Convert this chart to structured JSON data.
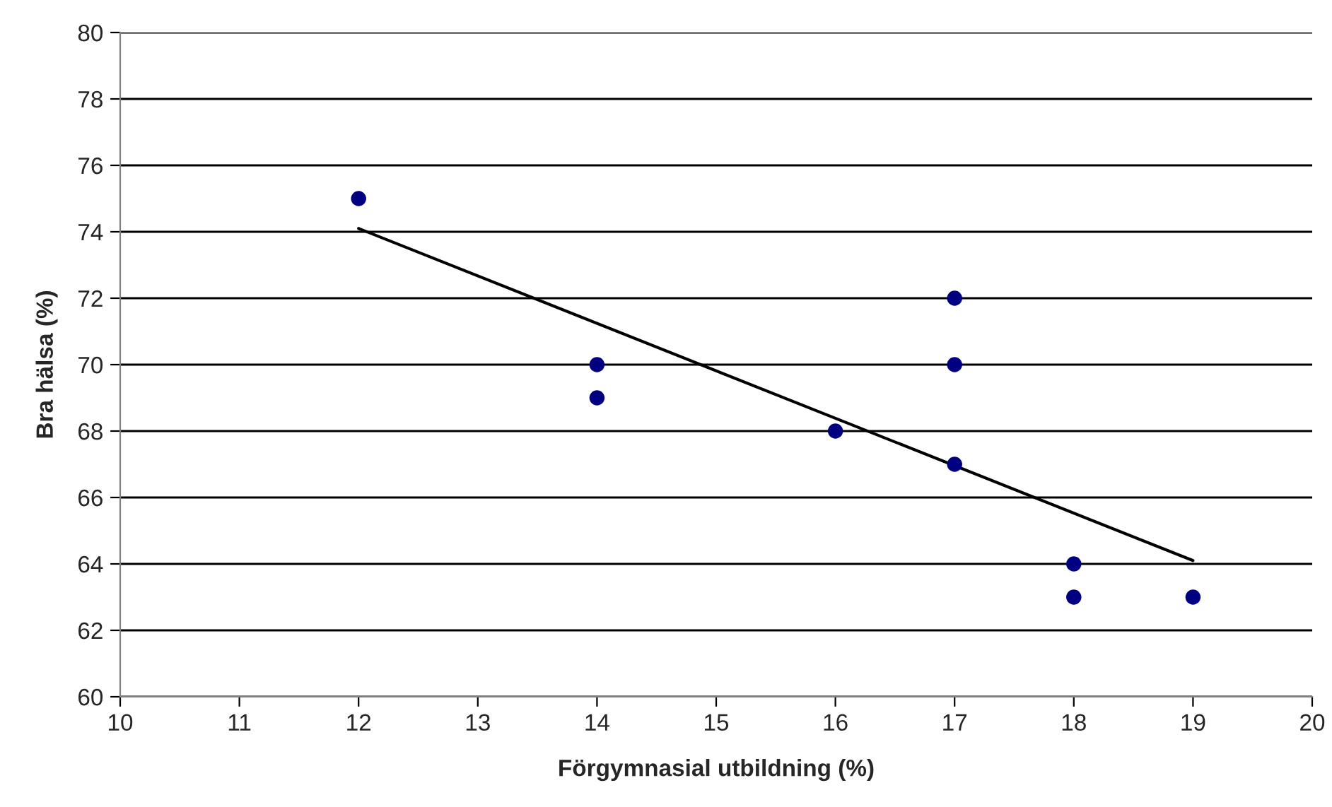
{
  "chart_data": {
    "type": "scatter",
    "xlabel": "Förgymnasial utbildning (%)",
    "ylabel": "Bra hälsa (%)",
    "series": [
      {
        "color": "#000080",
        "marker": "circle",
        "x": [
          12,
          14,
          14,
          16,
          17,
          17,
          17,
          18,
          18,
          19
        ],
        "values": [
          75,
          70,
          69,
          68,
          72,
          70,
          67,
          64,
          63,
          63
        ]
      },
      {
        "type": "line",
        "color": "#000000",
        "marker": "none",
        "line_style": "solid",
        "x": [
          12,
          19
        ],
        "values": [
          74.1,
          64.1
        ]
      }
    ],
    "xlim": [
      10,
      20
    ],
    "xticks": [
      10,
      11,
      12,
      13,
      14,
      15,
      16,
      17,
      18,
      19,
      20
    ],
    "ylim": [
      60,
      80
    ],
    "yticks": [
      60,
      62,
      64,
      66,
      68,
      70,
      72,
      74,
      76,
      78,
      80
    ],
    "grid": "y",
    "legend": false
  }
}
